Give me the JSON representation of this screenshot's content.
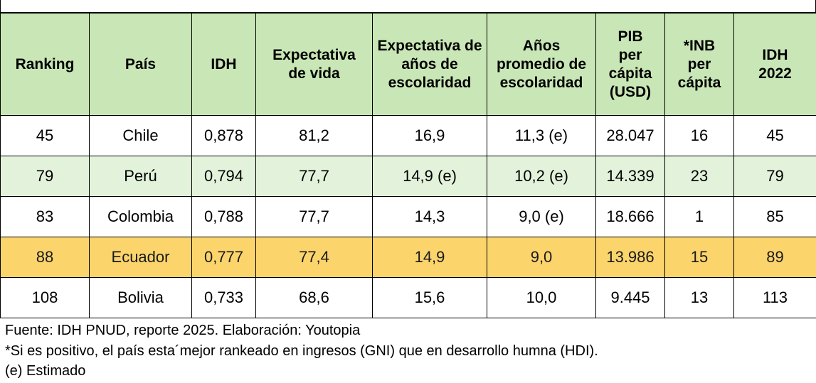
{
  "headers": [
    "Ranking",
    "País",
    "IDH",
    "Expectativa de vida",
    "Expectativa de años de escolaridad",
    "Años promedio de escolaridad",
    "PIB per cápita (USD)",
    "*INB per cápita",
    "IDH 2022"
  ],
  "rows": [
    [
      "45",
      "Chile",
      "0,878",
      "81,2",
      "16,9",
      "11,3 (e)",
      "28.047",
      "16",
      "45"
    ],
    [
      "79",
      "Perú",
      "0,794",
      "77,7",
      "14,9 (e)",
      "10,2 (e)",
      "14.339",
      "23",
      "79"
    ],
    [
      "83",
      "Colombia",
      "0,788",
      "77,7",
      "14,3",
      "9,0 (e)",
      "18.666",
      "1",
      "85"
    ],
    [
      "88",
      "Ecuador",
      "0,777",
      "77,4",
      "14,9",
      "9,0",
      "13.986",
      "15",
      "89"
    ],
    [
      "108",
      "Bolivia",
      "0,733",
      "68,6",
      "15,6",
      "10,0",
      "9.445",
      "13",
      "113"
    ]
  ],
  "footnotes": {
    "source": "Fuente: IDH PNUD, reporte 2025. Elaboración: Youtopia",
    "note": "*Si es positivo, el país esta´mejor rankeado en ingresos (GNI) que en desarrollo humna (HDI).",
    "estimate": "(e) Estimado"
  },
  "colors": {
    "header_bg": "#c9e7b6",
    "alt_row_bg": "#e3f2da",
    "highlight_row_bg": "#fbd46c",
    "highlight_text": "#1a1a1a"
  }
}
